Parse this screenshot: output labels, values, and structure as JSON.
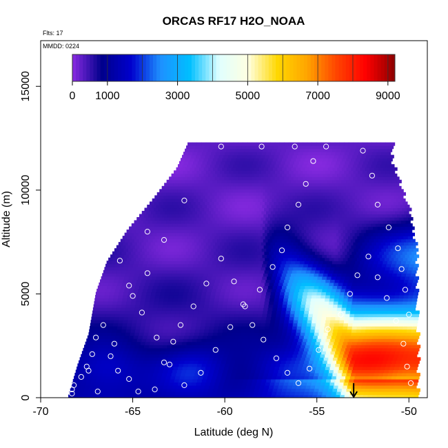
{
  "chart_data": {
    "type": "heatmap",
    "title": "ORCAS RF17 H2O_NOAA",
    "subtitle": "Flts: 17",
    "annotation": "MMDD: 0224",
    "xlabel": "Latitude (deg N)",
    "ylabel": "Altitude (m)",
    "xlim": [
      -70,
      -49
    ],
    "ylim": [
      0,
      17200
    ],
    "x_ticks": [
      -70,
      -65,
      -60,
      -55,
      -50
    ],
    "y_ticks": [
      0,
      5000,
      10000,
      15000
    ],
    "colorbar": {
      "range": [
        0,
        9200
      ],
      "tick_values": [
        0,
        1000,
        3000,
        5000,
        7000,
        9000
      ],
      "tick_labels": [
        "0",
        "1000",
        "3000",
        "5000",
        "7000",
        "9000"
      ],
      "colors": [
        "#8a2be2",
        "#00008b",
        "#0000cd",
        "#1e90ff",
        "#00bfff",
        "#e0ffff",
        "#ffffe0",
        "#ffd700",
        "#ffa500",
        "#ff4500",
        "#ff0000",
        "#8b0000"
      ]
    },
    "arrow_marker": {
      "x": -53,
      "from_altitude": 700,
      "to_altitude": 0
    },
    "flight_track": [
      [
        -68.3,
        200
      ],
      [
        -68.2,
        600
      ],
      [
        -67.8,
        1000
      ],
      [
        -67.5,
        1500
      ],
      [
        -67.2,
        2100
      ],
      [
        -67.0,
        2900
      ],
      [
        -66.6,
        3500
      ],
      [
        -66.2,
        2000
      ],
      [
        -65.8,
        1300
      ],
      [
        -65.2,
        900
      ],
      [
        -64.7,
        300
      ],
      [
        -63.8,
        400
      ],
      [
        -63.3,
        1700
      ],
      [
        -62.8,
        2700
      ],
      [
        -62.4,
        3500
      ],
      [
        -61.7,
        4400
      ],
      [
        -61.0,
        5500
      ],
      [
        -60.2,
        6700
      ],
      [
        -59.5,
        5600
      ],
      [
        -59.0,
        4500
      ],
      [
        -58.5,
        3500
      ],
      [
        -57.9,
        2800
      ],
      [
        -57.2,
        1900
      ],
      [
        -56.6,
        1200
      ],
      [
        -56.0,
        700
      ],
      [
        -55.4,
        1400
      ],
      [
        -54.9,
        2300
      ],
      [
        -54.4,
        3300
      ],
      [
        -53.7,
        4000
      ],
      [
        -53.2,
        5000
      ],
      [
        -52.8,
        5900
      ],
      [
        -52.2,
        6800
      ],
      [
        -51.7,
        5800
      ],
      [
        -51.2,
        4800
      ],
      [
        -50.7,
        3700
      ],
      [
        -50.3,
        2600
      ],
      [
        -50.1,
        1500
      ],
      [
        -49.9,
        700
      ],
      [
        -50.0,
        4000
      ],
      [
        -50.2,
        5200
      ],
      [
        -50.4,
        6200
      ],
      [
        -50.6,
        7200
      ],
      [
        -51.1,
        8200
      ],
      [
        -51.7,
        9300
      ],
      [
        -52.0,
        10700
      ],
      [
        -52.5,
        11900
      ],
      [
        -54.5,
        12100
      ],
      [
        -55.2,
        11400
      ],
      [
        -55.6,
        10300
      ],
      [
        -56.0,
        9300
      ],
      [
        -56.6,
        8200
      ],
      [
        -56.9,
        7100
      ],
      [
        -57.4,
        6300
      ],
      [
        -58.1,
        5200
      ],
      [
        -58.9,
        4400
      ],
      [
        -59.7,
        3400
      ],
      [
        -60.5,
        2300
      ],
      [
        -61.3,
        1200
      ],
      [
        -62.2,
        600
      ],
      [
        -63.0,
        1600
      ],
      [
        -63.7,
        2900
      ],
      [
        -64.5,
        4100
      ],
      [
        -65.2,
        5400
      ],
      [
        -65.7,
        6600
      ],
      [
        -66.4,
        8000
      ],
      [
        -64.2,
        8000
      ],
      [
        -63.3,
        7600
      ],
      [
        -62.2,
        9500
      ],
      [
        -62.5,
        11800
      ],
      [
        -60.2,
        12100
      ],
      [
        -58.0,
        12100
      ],
      [
        -56.2,
        12100
      ],
      [
        -68.3,
        400
      ],
      [
        -67.4,
        1300
      ],
      [
        -66.9,
        300
      ],
      [
        -66.0,
        2600
      ],
      [
        -65.0,
        4900
      ],
      [
        -64.2,
        6000
      ]
    ]
  }
}
